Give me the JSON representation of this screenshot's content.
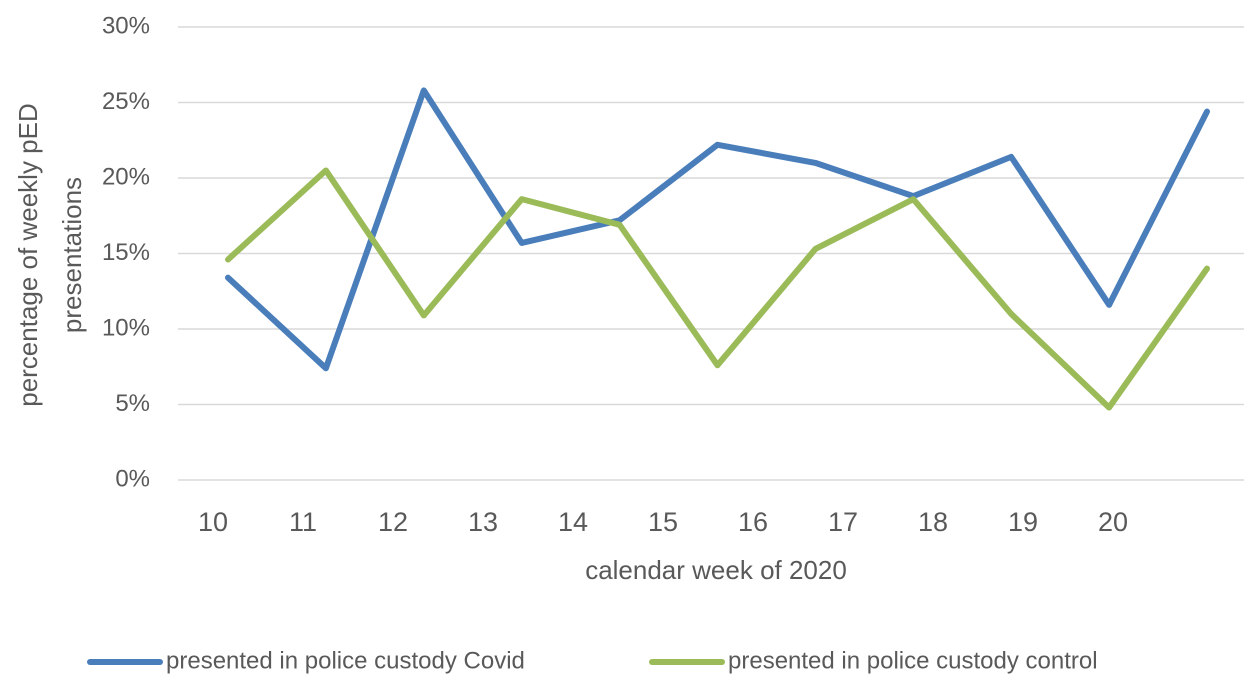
{
  "chart_data": {
    "type": "line",
    "xlabel": "calendar week of 2020",
    "ylabel": "percentage of weekly pED presentations",
    "categories": [
      "10",
      "11",
      "12",
      "13",
      "14",
      "15",
      "16",
      "17",
      "18",
      "19",
      "20"
    ],
    "series": [
      {
        "name": "presented in police custody Covid",
        "color": "#4a7ebb",
        "values": [
          13.4,
          7.4,
          25.8,
          15.7,
          17.2,
          22.2,
          21.0,
          18.8,
          21.4,
          11.6,
          24.4
        ]
      },
      {
        "name": "presented in police custody control",
        "color": "#9bbb59",
        "values": [
          14.6,
          20.5,
          10.9,
          18.6,
          16.9,
          7.6,
          15.3,
          18.6,
          11.0,
          4.8,
          14.0
        ]
      }
    ],
    "ylim": [
      0,
      30
    ],
    "yticks": [
      {
        "value": 0,
        "label": "0%"
      },
      {
        "value": 5,
        "label": "5%"
      },
      {
        "value": 10,
        "label": "10%"
      },
      {
        "value": 15,
        "label": "15%"
      },
      {
        "value": 20,
        "label": "20%"
      },
      {
        "value": 25,
        "label": "25%"
      },
      {
        "value": 30,
        "label": "30%"
      }
    ],
    "grid": true,
    "legend": "bottom"
  }
}
